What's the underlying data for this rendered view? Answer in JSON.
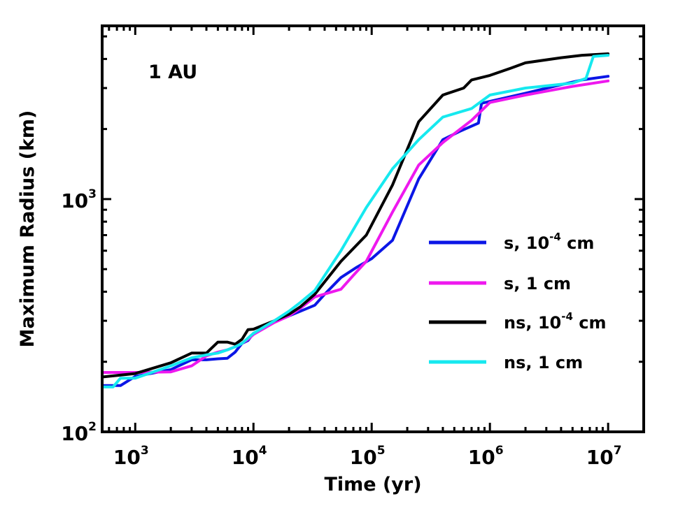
{
  "chart_data": {
    "type": "line",
    "title": "",
    "annotation": "1 AU",
    "xlabel": "Time (yr)",
    "ylabel": "Maximum Radius (km)",
    "xscale": "log",
    "yscale": "log",
    "xlim": [
      525,
      20000000
    ],
    "ylim": [
      100,
      5550
    ],
    "x_ticks": [
      {
        "base": "10",
        "exp": "3",
        "value": 1000
      },
      {
        "base": "10",
        "exp": "4",
        "value": 10000
      },
      {
        "base": "10",
        "exp": "5",
        "value": 100000
      },
      {
        "base": "10",
        "exp": "6",
        "value": 1000000
      },
      {
        "base": "10",
        "exp": "7",
        "value": 10000000
      }
    ],
    "y_ticks": [
      {
        "base": "10",
        "exp": "2",
        "value": 100
      },
      {
        "base": "10",
        "exp": "3",
        "value": 1000
      }
    ],
    "legend_position": "center-right",
    "series": [
      {
        "name": "s, 10-4 cm",
        "label_main": "s, 10",
        "label_exp": "-4",
        "label_tail": " cm",
        "color": "#0b16e6",
        "points": [
          [
            525,
            158
          ],
          [
            750,
            158
          ],
          [
            1000,
            173
          ],
          [
            2000,
            185
          ],
          [
            3000,
            204
          ],
          [
            4000,
            204
          ],
          [
            5000,
            206
          ],
          [
            6000,
            207
          ],
          [
            7000,
            220
          ],
          [
            8000,
            240
          ],
          [
            9000,
            247
          ],
          [
            10000,
            265
          ],
          [
            15000,
            296
          ],
          [
            20000,
            315
          ],
          [
            25000,
            330
          ],
          [
            33000,
            350
          ],
          [
            40000,
            390
          ],
          [
            55000,
            460
          ],
          [
            75000,
            510
          ],
          [
            100000,
            555
          ],
          [
            150000,
            665
          ],
          [
            250000,
            1220
          ],
          [
            400000,
            1800
          ],
          [
            550000,
            1950
          ],
          [
            800000,
            2120
          ],
          [
            850000,
            2580
          ],
          [
            2000000,
            2850
          ],
          [
            4000000,
            3100
          ],
          [
            6000000,
            3250
          ],
          [
            10000000,
            3370
          ]
        ]
      },
      {
        "name": "s, 1 cm",
        "label_main": "s, 1 cm",
        "label_exp": "",
        "label_tail": "",
        "color": "#ee18ee",
        "points": [
          [
            525,
            180
          ],
          [
            1000,
            180
          ],
          [
            2000,
            181
          ],
          [
            3000,
            192
          ],
          [
            4000,
            212
          ],
          [
            5000,
            220
          ],
          [
            6000,
            225
          ],
          [
            7000,
            232
          ],
          [
            8000,
            240
          ],
          [
            9000,
            250
          ],
          [
            10000,
            262
          ],
          [
            15000,
            295
          ],
          [
            20000,
            315
          ],
          [
            25000,
            340
          ],
          [
            33000,
            380
          ],
          [
            55000,
            410
          ],
          [
            70000,
            470
          ],
          [
            90000,
            540
          ],
          [
            150000,
            880
          ],
          [
            250000,
            1400
          ],
          [
            400000,
            1750
          ],
          [
            700000,
            2180
          ],
          [
            1000000,
            2600
          ],
          [
            2000000,
            2800
          ],
          [
            5000000,
            3050
          ],
          [
            10000000,
            3220
          ]
        ]
      },
      {
        "name": "ns, 10-4 cm",
        "label_main": "ns, 10",
        "label_exp": "-4",
        "label_tail": " cm",
        "color": "#000000",
        "points": [
          [
            525,
            172
          ],
          [
            1000,
            178
          ],
          [
            2000,
            198
          ],
          [
            3000,
            218
          ],
          [
            4000,
            218
          ],
          [
            5000,
            243
          ],
          [
            6000,
            243
          ],
          [
            7000,
            238
          ],
          [
            8000,
            250
          ],
          [
            9000,
            275
          ],
          [
            10000,
            276
          ],
          [
            15000,
            300
          ],
          [
            20000,
            320
          ],
          [
            25000,
            345
          ],
          [
            33000,
            390
          ],
          [
            55000,
            540
          ],
          [
            90000,
            700
          ],
          [
            150000,
            1150
          ],
          [
            250000,
            2150
          ],
          [
            400000,
            2800
          ],
          [
            600000,
            3000
          ],
          [
            700000,
            3250
          ],
          [
            1000000,
            3400
          ],
          [
            1500000,
            3650
          ],
          [
            2000000,
            3850
          ],
          [
            4000000,
            4050
          ],
          [
            6000000,
            4150
          ],
          [
            10000000,
            4210
          ]
        ]
      },
      {
        "name": "ns, 1 cm",
        "label_main": "ns, 1 cm",
        "label_exp": "",
        "label_tail": "",
        "color": "#16e9ef",
        "points": [
          [
            525,
            156
          ],
          [
            650,
            156
          ],
          [
            750,
            170
          ],
          [
            1000,
            170
          ],
          [
            2000,
            192
          ],
          [
            3000,
            208
          ],
          [
            4000,
            214
          ],
          [
            5000,
            218
          ],
          [
            6000,
            225
          ],
          [
            7000,
            232
          ],
          [
            8000,
            240
          ],
          [
            10000,
            265
          ],
          [
            15000,
            300
          ],
          [
            20000,
            330
          ],
          [
            25000,
            360
          ],
          [
            33000,
            405
          ],
          [
            55000,
            600
          ],
          [
            90000,
            920
          ],
          [
            150000,
            1350
          ],
          [
            250000,
            1800
          ],
          [
            400000,
            2250
          ],
          [
            700000,
            2450
          ],
          [
            1000000,
            2800
          ],
          [
            2000000,
            3000
          ],
          [
            5000000,
            3150
          ],
          [
            6500000,
            3300
          ],
          [
            7500000,
            4100
          ],
          [
            10000000,
            4150
          ]
        ]
      }
    ]
  }
}
